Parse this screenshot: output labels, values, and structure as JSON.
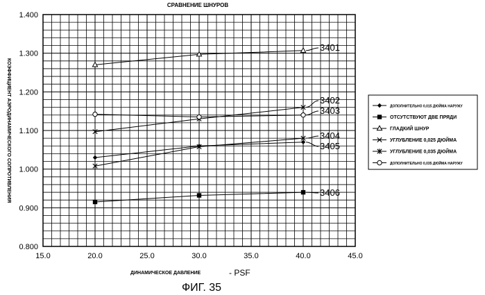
{
  "chart_data": {
    "type": "line",
    "title": "СРАВНЕНИЕ ШНУРОВ",
    "xlabel": "ДИНАМИЧЕСКОЕ ДАВЛЕНИЕ",
    "xlabel_unit": "- PSF",
    "ylabel": "КОЭФФИЦИЕНТ АЭРОДИНАМИЧЕСКОГО СОПРОТИВЛЕНИЯ",
    "figure_caption": "ФИГ. 35",
    "xlim": [
      15.0,
      45.0
    ],
    "ylim": [
      0.8,
      1.4
    ],
    "x_ticks": [
      "15.0",
      "20.0",
      "25.0",
      "30.0",
      "35.0",
      "40.0",
      "45.0"
    ],
    "y_ticks": [
      "0.800",
      "0.900",
      "1.000",
      "1.100",
      "1.200",
      "1.300",
      "1.400"
    ],
    "x": [
      20,
      30,
      40
    ],
    "grid": true,
    "legend_position": "right",
    "series": [
      {
        "name": "ДОПОЛНИТЕЛЬНО 0,015 ДЮЙМА НАРУЖУ",
        "marker": "diamond",
        "label": "3405",
        "values": [
          1.03,
          1.06,
          1.07
        ]
      },
      {
        "name": "ОТСУТСТВУЮТ ДВЕ ПРЯДИ",
        "marker": "square",
        "label": "3406",
        "values": [
          0.915,
          0.932,
          0.94
        ]
      },
      {
        "name": "ГЛАДКИЙ ШНУР",
        "marker": "triangle",
        "label": "3401",
        "values": [
          1.27,
          1.297,
          1.307
        ]
      },
      {
        "name": "УГЛУБЛЕНИЕ 0,025 ДЮЙМА",
        "marker": "x",
        "label": "3402",
        "values": [
          1.097,
          1.13,
          1.16
        ]
      },
      {
        "name": "УГЛУБЛЕНИЕ 0,035 ДЮЙМА",
        "marker": "star",
        "label": "3404",
        "values": [
          1.008,
          1.058,
          1.08
        ]
      },
      {
        "name": "ДОПОЛНИТЕЛЬНО 0,035 ДЮЙМА НАРУЖУ",
        "marker": "circle",
        "label": "3403",
        "values": [
          1.142,
          1.135,
          1.14
        ]
      }
    ]
  }
}
